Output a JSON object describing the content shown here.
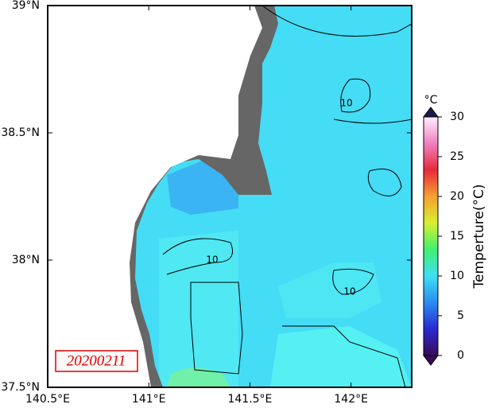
{
  "map": {
    "date_label": "20200211",
    "xlim": [
      140.5,
      142.3
    ],
    "ylim": [
      37.5,
      39
    ],
    "xticks": [
      {
        "value": 140.5,
        "label": "140.5°E"
      },
      {
        "value": 141,
        "label": "141°E"
      },
      {
        "value": 141.5,
        "label": "141.5°E"
      },
      {
        "value": 142,
        "label": "142°E"
      }
    ],
    "yticks": [
      {
        "value": 37.5,
        "label": "37.5°N"
      },
      {
        "value": 38,
        "label": "38°N"
      },
      {
        "value": 38.5,
        "label": "38.5°N"
      },
      {
        "value": 39,
        "label": "39°N"
      }
    ],
    "contour_labels": [
      10,
      10,
      10
    ],
    "colorbar": {
      "unit": "°C",
      "title": "Temperture(°C)",
      "lim": [
        0,
        30
      ],
      "ticks": [
        0,
        5,
        10,
        15,
        20,
        25,
        30
      ],
      "colors": [
        "#3a0a5a",
        "#2a2ad0",
        "#2a8cf0",
        "#3fe0f5",
        "#40f070",
        "#d8f030",
        "#f5a030",
        "#e82a3a",
        "#f080c0",
        "#fff0ff"
      ]
    }
  }
}
